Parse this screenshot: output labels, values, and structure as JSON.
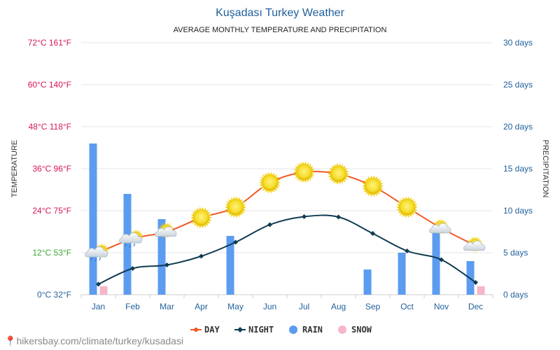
{
  "chart_data": {
    "type": "bar",
    "title": "Kuşadası Turkey Weather",
    "subtitle": "AVERAGE MONTHLY TEMPERATURE AND PRECIPITATION",
    "ylabel_left": "TEMPERATURE",
    "ylabel_right": "PRECIPITATION",
    "categories": [
      "Jan",
      "Feb",
      "Mar",
      "Apr",
      "May",
      "Jun",
      "Jul",
      "Aug",
      "Sep",
      "Oct",
      "Nov",
      "Dec"
    ],
    "y_left_ticks": [
      "0°C 32°F",
      "12°C 53°F",
      "24°C 75°F",
      "36°C 96°F",
      "48°C 118°F",
      "60°C 140°F",
      "72°C 161°F"
    ],
    "y_right_ticks": [
      "0 days",
      "5 days",
      "10 days",
      "15 days",
      "20 days",
      "25 days",
      "30 days"
    ],
    "temp_range": [
      0,
      72
    ],
    "precip_range": [
      0,
      30
    ],
    "series": [
      {
        "name": "DAY",
        "kind": "line",
        "color": "#f15a24",
        "values": [
          12,
          16,
          18,
          22,
          25,
          32,
          35,
          34.5,
          31,
          25,
          19,
          14
        ]
      },
      {
        "name": "NIGHT",
        "kind": "line",
        "color": "#0f3b52",
        "values": [
          3,
          7.5,
          8.5,
          11,
          15,
          20,
          22.3,
          22.2,
          17.5,
          12.5,
          10,
          3.5
        ]
      },
      {
        "name": "RAIN",
        "kind": "bar",
        "color": "#5b9cf0",
        "values": [
          18,
          12,
          9,
          0,
          7,
          0,
          0,
          0,
          3,
          5,
          8,
          4
        ]
      },
      {
        "name": "SNOW",
        "kind": "bar",
        "color": "#f7b6c8",
        "values": [
          1,
          0,
          0,
          0,
          0,
          0,
          0,
          0,
          0,
          0,
          0,
          1
        ]
      }
    ],
    "day_weather_icons": [
      "sun-cloud-rain",
      "sun-cloud-rain",
      "sun-cloud",
      "sun",
      "sun",
      "sun",
      "sun",
      "sun",
      "sun",
      "sun",
      "sun-cloud",
      "sun-cloud"
    ],
    "grid": true,
    "legend_position": "bottom"
  },
  "source_text": "hikersbay.com/climate/turkey/kusadasi"
}
